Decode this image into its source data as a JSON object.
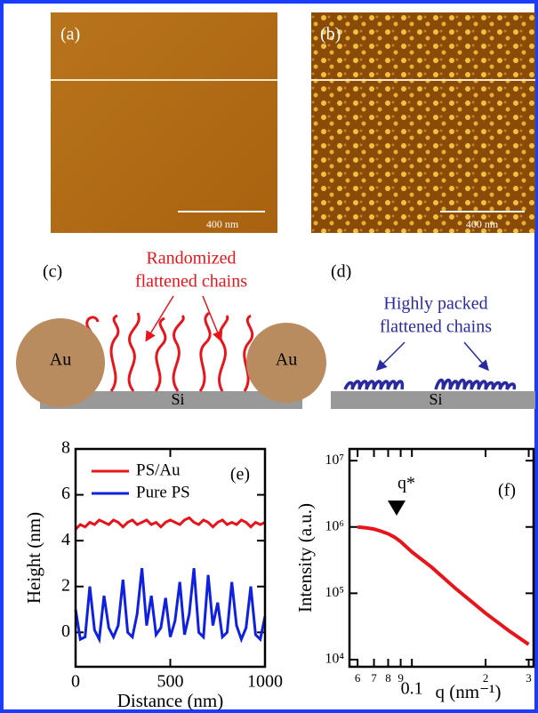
{
  "panels": {
    "a": {
      "label": "(a)",
      "scale_bar": "400 nm"
    },
    "b": {
      "label": "(b)",
      "scale_bar": "400 nm"
    },
    "c": {
      "label": "(c)",
      "annotation": [
        "Randomized",
        "flattened chains"
      ],
      "particles": [
        "Au",
        "Au"
      ],
      "substrate": "Si"
    },
    "d": {
      "label": "(d)",
      "annotation": [
        "Highly packed",
        "flattened chains"
      ],
      "substrate": "Si"
    }
  },
  "chart_data": [
    {
      "type": "line",
      "label": "(e)",
      "xlabel": "Distance (nm)",
      "ylabel": "Height (nm)",
      "x": [
        0,
        25,
        50,
        75,
        100,
        125,
        150,
        175,
        200,
        225,
        250,
        275,
        300,
        325,
        350,
        375,
        400,
        425,
        450,
        475,
        500,
        525,
        550,
        575,
        600,
        625,
        650,
        675,
        700,
        725,
        750,
        775,
        800,
        825,
        850,
        875,
        900,
        925,
        950,
        975,
        1000
      ],
      "series": [
        {
          "name": "PS/Au",
          "color": "#e8141c",
          "values": [
            4.5,
            4.7,
            4.6,
            4.8,
            4.7,
            4.9,
            4.8,
            4.7,
            4.9,
            4.8,
            4.6,
            4.8,
            4.9,
            4.7,
            4.8,
            4.9,
            4.7,
            4.8,
            4.6,
            4.8,
            4.9,
            4.8,
            4.7,
            4.9,
            5.0,
            4.8,
            4.7,
            4.9,
            4.8,
            4.6,
            4.8,
            4.9,
            4.7,
            4.8,
            4.7,
            4.9,
            4.8,
            4.6,
            4.8,
            4.7,
            4.8
          ]
        },
        {
          "name": "Pure PS",
          "color": "#1020e0",
          "values": [
            1.0,
            -0.3,
            -0.2,
            2.0,
            0.1,
            -0.3,
            1.6,
            0.2,
            -0.2,
            0.3,
            2.3,
            0.0,
            -0.2,
            0.8,
            2.8,
            0.3,
            1.6,
            -0.1,
            0.2,
            1.5,
            -0.2,
            0.5,
            2.2,
            -0.1,
            0.8,
            2.8,
            0.0,
            -0.2,
            2.5,
            0.3,
            1.3,
            -0.2,
            0.0,
            2.2,
            0.3,
            -0.3,
            0.2,
            2.0,
            -0.1,
            -0.3,
            0.7
          ]
        }
      ],
      "xlim": [
        0,
        1000
      ],
      "ylim": [
        -1.5,
        8
      ],
      "xticks": [
        0,
        500,
        1000
      ],
      "yticks": [
        0,
        2,
        4,
        6,
        8
      ],
      "legend": "upper left"
    },
    {
      "type": "line",
      "label": "(f)",
      "xlabel": "q (nm⁻¹)",
      "ylabel": "Intensity (a.u.)",
      "annotation": "q*",
      "x": [
        0.06,
        0.065,
        0.07,
        0.075,
        0.08,
        0.085,
        0.09,
        0.1,
        0.12,
        0.15,
        0.2,
        0.25,
        0.3
      ],
      "series": [
        {
          "color": "#e8141c",
          "values": [
            1000000,
            970000,
            930000,
            860000,
            790000,
            700000,
            600000,
            420000,
            250000,
            120000,
            50000,
            27000,
            17000
          ]
        }
      ],
      "xlog": true,
      "ylog": true,
      "xlim": [
        0.0556,
        0.314
      ],
      "ylim": [
        7800,
        15000000
      ],
      "xticks": [
        {
          "value": 0.06,
          "label": "6"
        },
        {
          "value": 0.07,
          "label": "7"
        },
        {
          "value": 0.08,
          "label": "8"
        },
        {
          "value": 0.09,
          "label": "9"
        },
        0.1,
        {
          "value": 0.2,
          "label": "2"
        },
        {
          "value": 0.3,
          "label": "3"
        }
      ],
      "yticks": [
        {
          "value": 10000,
          "label": "10⁴"
        },
        {
          "value": 100000,
          "label": "10⁵"
        },
        {
          "value": 1000000,
          "label": "10⁶"
        },
        {
          "value": 10000000,
          "label": "10⁷"
        }
      ]
    }
  ]
}
